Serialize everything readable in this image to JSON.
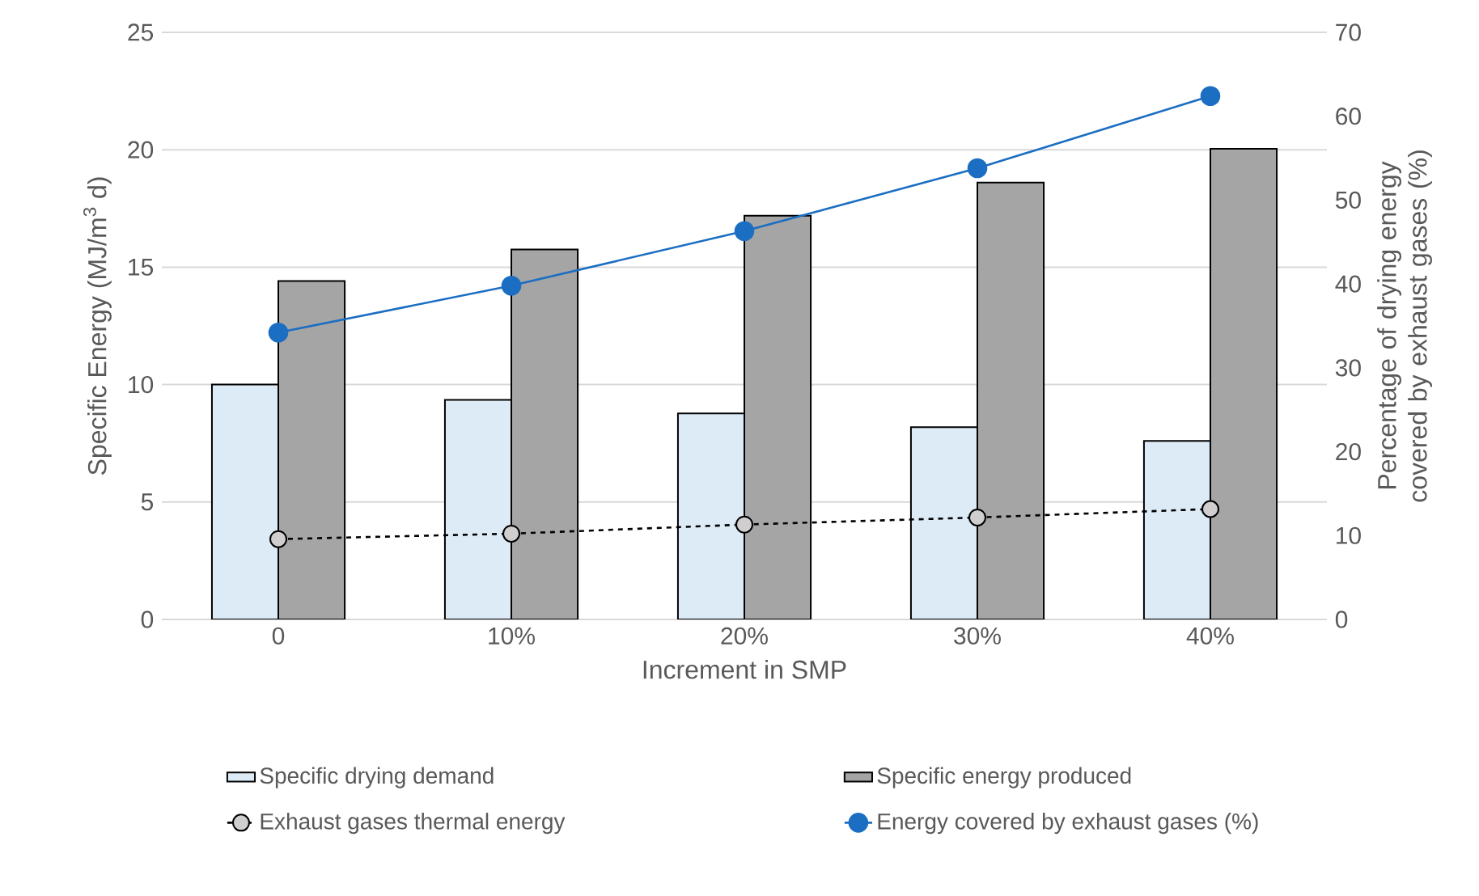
{
  "chart_data": {
    "type": "bar",
    "xlabel": "Increment in SMP",
    "ylabel": "Specific Energy (MJ/m$^{3}$ d)",
    "y2label": "Percentage of drying energy covered by exhaust gases (%)",
    "categories": [
      "0",
      "10%",
      "20%",
      "30%",
      "40%"
    ],
    "ylim": [
      0,
      25
    ],
    "yticks": [
      0,
      5,
      10,
      15,
      20,
      25
    ],
    "y2lim": [
      0,
      70
    ],
    "y2ticks": [
      0,
      10,
      20,
      30,
      40,
      50,
      60,
      70
    ],
    "grid": "y",
    "legend": "bottom",
    "series": [
      {
        "name": "Specific drying demand",
        "color": "#ddebf7",
        "values": [
          10.0,
          9.35,
          8.77,
          8.19,
          7.6
        ]
      },
      {
        "name": "Specific energy produced",
        "color": "#a5a5a5",
        "values": [
          14.41,
          15.75,
          17.19,
          18.6,
          20.04
        ]
      },
      {
        "name": "Exhaust gases thermal energy",
        "type": "line",
        "color": "#d0cece",
        "marker": "circle",
        "line_style": "dashed",
        "values": [
          3.42,
          3.65,
          4.04,
          4.34,
          4.7
        ]
      },
      {
        "name": "Energy covered by exhaust gases (%)",
        "type": "line",
        "color": "#1b6ec2",
        "marker": "circle",
        "line_style": "solid",
        "axis": "y2",
        "values": [
          34.2,
          39.8,
          46.3,
          53.8,
          62.4
        ]
      }
    ]
  }
}
